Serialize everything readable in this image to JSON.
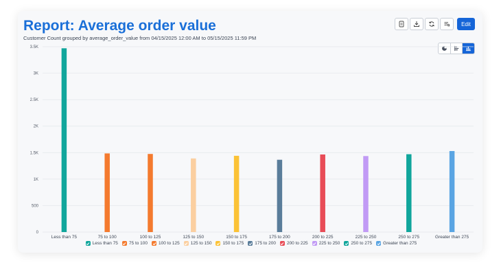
{
  "report": {
    "title": "Report: Average order value",
    "subtitle": "Customer Count grouped by average_order_value from 04/15/2025 12:00 AM to 05/15/2025 11:59 PM"
  },
  "toolbar": {
    "buttons": [
      {
        "icon": "report-icon"
      },
      {
        "icon": "download-icon"
      },
      {
        "icon": "refresh-icon"
      },
      {
        "icon": "filter-list-icon"
      }
    ],
    "edit_label": "Edit"
  },
  "view_toggle": {
    "options": [
      "pie-chart-icon",
      "horizontal-bar-icon",
      "bar-chart-icon"
    ],
    "active": "bar-chart-icon"
  },
  "chart_data": {
    "type": "bar",
    "title": "",
    "xlabel": "",
    "ylabel": "",
    "categories": [
      "Less than 75",
      "75 to 100",
      "100 to 125",
      "125 to 150",
      "150 to 175",
      "175 to 200",
      "200 to 225",
      "225 to 250",
      "250 to 275",
      "Greater than 275"
    ],
    "values": [
      3470,
      1485,
      1475,
      1390,
      1440,
      1365,
      1465,
      1435,
      1470,
      1530
    ],
    "colors": [
      "#11a69c",
      "#f47a2e",
      "#f47a2e",
      "#fbcfa0",
      "#fbc236",
      "#5a7d9a",
      "#e84c57",
      "#c19af5",
      "#11a69c",
      "#5aa5e3"
    ],
    "ylim": [
      0,
      3500
    ],
    "yticks": [
      0,
      500,
      1000,
      1500,
      2000,
      2500,
      3000,
      3500
    ],
    "ytick_labels": [
      "0",
      "500",
      "1K",
      "1.5K",
      "2K",
      "2.5K",
      "3K",
      "3.5K"
    ],
    "grid": true,
    "legend_position": "bottom"
  }
}
